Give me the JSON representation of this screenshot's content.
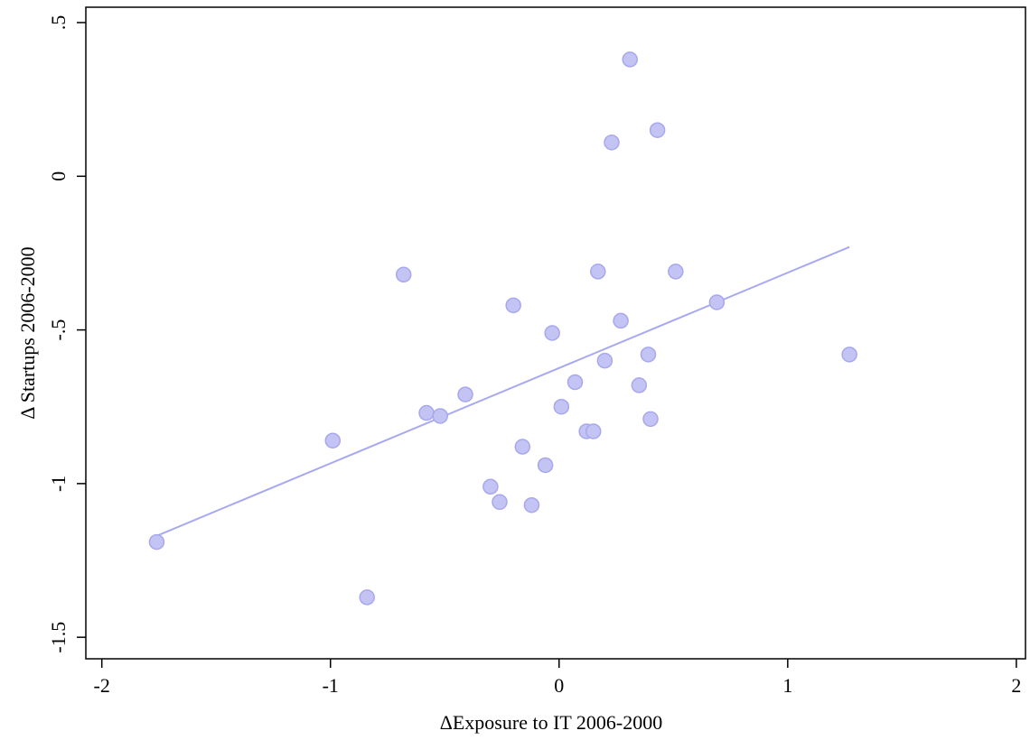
{
  "chart_data": {
    "type": "scatter",
    "title": "",
    "xlabel": "ΔExposure to IT 2006-2000",
    "ylabel": "Δ Startups 2006-2000",
    "xlim": [
      -2.07,
      2.04
    ],
    "ylim": [
      -1.57,
      0.55
    ],
    "xticks": [
      -2,
      -1,
      0,
      1,
      2
    ],
    "xtick_labels": [
      "-2",
      "-1",
      "0",
      "1",
      "2"
    ],
    "yticks": [
      0.5,
      0,
      -0.5,
      -1,
      -1.5
    ],
    "ytick_labels": [
      ".5",
      "0",
      "-.5",
      "-1",
      "-1.5"
    ],
    "grid": false,
    "legend": "none",
    "colors": {
      "point_fill": "#c4c4f4",
      "point_stroke": "#a7a7ee",
      "fit_line": "#a9a9f2"
    },
    "points": [
      {
        "x": -1.76,
        "y": -1.19
      },
      {
        "x": -0.99,
        "y": -0.86
      },
      {
        "x": -0.84,
        "y": -1.37
      },
      {
        "x": -0.68,
        "y": -0.32
      },
      {
        "x": -0.58,
        "y": -0.77
      },
      {
        "x": -0.52,
        "y": -0.78
      },
      {
        "x": -0.41,
        "y": -0.71
      },
      {
        "x": -0.3,
        "y": -1.01
      },
      {
        "x": -0.26,
        "y": -1.06
      },
      {
        "x": -0.2,
        "y": -0.42
      },
      {
        "x": -0.16,
        "y": -0.88
      },
      {
        "x": -0.12,
        "y": -1.07
      },
      {
        "x": -0.06,
        "y": -0.94
      },
      {
        "x": -0.03,
        "y": -0.51
      },
      {
        "x": 0.01,
        "y": -0.75
      },
      {
        "x": 0.07,
        "y": -0.67
      },
      {
        "x": 0.12,
        "y": -0.83
      },
      {
        "x": 0.15,
        "y": -0.83
      },
      {
        "x": 0.17,
        "y": -0.31
      },
      {
        "x": 0.2,
        "y": -0.6
      },
      {
        "x": 0.23,
        "y": 0.11
      },
      {
        "x": 0.27,
        "y": -0.47
      },
      {
        "x": 0.31,
        "y": 0.38
      },
      {
        "x": 0.35,
        "y": -0.68
      },
      {
        "x": 0.39,
        "y": -0.58
      },
      {
        "x": 0.4,
        "y": -0.79
      },
      {
        "x": 0.43,
        "y": 0.15
      },
      {
        "x": 0.51,
        "y": -0.31
      },
      {
        "x": 0.69,
        "y": -0.41
      },
      {
        "x": 1.27,
        "y": -0.58
      }
    ],
    "fit_line": {
      "x": [
        -1.76,
        1.27
      ],
      "y": [
        -1.17,
        -0.23
      ]
    }
  }
}
